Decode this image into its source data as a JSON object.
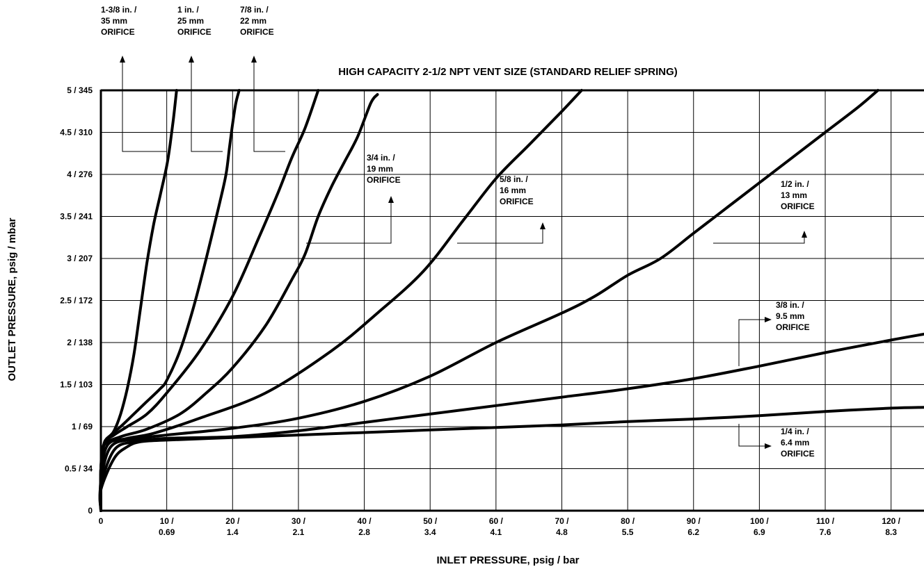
{
  "chart_data": {
    "type": "line",
    "title": "HIGH CAPACITY 2-1/2 NPT VENT SIZE (STANDARD RELIEF SPRING)",
    "xlabel": "INLET PRESSURE, psig / bar",
    "ylabel": "OUTLET PRESSURE, psig / mbar",
    "xlim": [
      0,
      125
    ],
    "ylim": [
      0,
      5
    ],
    "grid": true,
    "x_ticks": [
      {
        "value": 0,
        "line1": "0",
        "line2": ""
      },
      {
        "value": 10,
        "line1": "10 /",
        "line2": "0.69"
      },
      {
        "value": 20,
        "line1": "20 /",
        "line2": "1.4"
      },
      {
        "value": 30,
        "line1": "30 /",
        "line2": "2.1"
      },
      {
        "value": 40,
        "line1": "40 /",
        "line2": "2.8"
      },
      {
        "value": 50,
        "line1": "50 /",
        "line2": "3.4"
      },
      {
        "value": 60,
        "line1": "60 /",
        "line2": "4.1"
      },
      {
        "value": 70,
        "line1": "70 /",
        "line2": "4.8"
      },
      {
        "value": 80,
        "line1": "80 /",
        "line2": "5.5"
      },
      {
        "value": 90,
        "line1": "90 /",
        "line2": "6.2"
      },
      {
        "value": 100,
        "line1": "100 /",
        "line2": "6.9"
      },
      {
        "value": 110,
        "line1": "110 /",
        "line2": "7.6"
      },
      {
        "value": 120,
        "line1": "120 /",
        "line2": "8.3"
      }
    ],
    "y_ticks": [
      {
        "value": 0,
        "label": "0"
      },
      {
        "value": 0.5,
        "label": "0.5 / 34"
      },
      {
        "value": 1,
        "label": "1 / 69"
      },
      {
        "value": 1.5,
        "label": "1.5 / 103"
      },
      {
        "value": 2,
        "label": "2 / 138"
      },
      {
        "value": 2.5,
        "label": "2.5 / 172"
      },
      {
        "value": 3,
        "label": "3 / 207"
      },
      {
        "value": 3.5,
        "label": "3.5 / 241"
      },
      {
        "value": 4,
        "label": "4 / 276"
      },
      {
        "value": 4.5,
        "label": "4.5 / 310"
      },
      {
        "value": 5,
        "label": "5 / 345"
      }
    ],
    "series": [
      {
        "name": "1-3/8 in. / 35 mm ORIFICE",
        "points": [
          [
            0,
            0
          ],
          [
            0,
            0.5
          ],
          [
            0.5,
            0.8
          ],
          [
            1,
            0.85
          ],
          [
            2,
            0.95
          ],
          [
            3,
            1.15
          ],
          [
            4,
            1.45
          ],
          [
            5,
            1.85
          ],
          [
            6,
            2.4
          ],
          [
            7,
            2.95
          ],
          [
            8,
            3.4
          ],
          [
            9,
            3.75
          ],
          [
            10,
            4.1
          ],
          [
            10.5,
            4.35
          ],
          [
            11,
            4.65
          ],
          [
            11.5,
            5.0
          ]
        ]
      },
      {
        "name": "1 in. / 25 mm ORIFICE",
        "points": [
          [
            0,
            0
          ],
          [
            0,
            0.5
          ],
          [
            0.5,
            0.8
          ],
          [
            1.5,
            0.9
          ],
          [
            3,
            1.0
          ],
          [
            5,
            1.15
          ],
          [
            7,
            1.3
          ],
          [
            9,
            1.45
          ],
          [
            10,
            1.55
          ],
          [
            12,
            1.9
          ],
          [
            14,
            2.4
          ],
          [
            16,
            3.0
          ],
          [
            18,
            3.65
          ],
          [
            19,
            4.0
          ],
          [
            19.5,
            4.3
          ],
          [
            20,
            4.6
          ],
          [
            20.5,
            4.85
          ],
          [
            21,
            5.0
          ]
        ]
      },
      {
        "name": "7/8 in. / 22 mm ORIFICE",
        "points": [
          [
            0,
            0
          ],
          [
            0,
            0.5
          ],
          [
            0.5,
            0.8
          ],
          [
            2,
            0.9
          ],
          [
            4,
            1.0
          ],
          [
            7,
            1.15
          ],
          [
            10,
            1.4
          ],
          [
            15,
            1.9
          ],
          [
            20,
            2.55
          ],
          [
            24,
            3.25
          ],
          [
            27,
            3.8
          ],
          [
            29,
            4.2
          ],
          [
            31,
            4.55
          ],
          [
            33,
            5.0
          ]
        ]
      },
      {
        "name": "3/4 in. / 19 mm ORIFICE",
        "points": [
          [
            0,
            0
          ],
          [
            0,
            0.5
          ],
          [
            0.5,
            0.78
          ],
          [
            3,
            0.88
          ],
          [
            7,
            0.97
          ],
          [
            12,
            1.15
          ],
          [
            16,
            1.4
          ],
          [
            20,
            1.7
          ],
          [
            25,
            2.2
          ],
          [
            29,
            2.75
          ],
          [
            31,
            3.05
          ],
          [
            33,
            3.5
          ],
          [
            35,
            3.85
          ],
          [
            37,
            4.15
          ],
          [
            39,
            4.45
          ],
          [
            41,
            4.85
          ],
          [
            42,
            4.95
          ]
        ]
      },
      {
        "name": "5/8 in. / 16 mm ORIFICE",
        "points": [
          [
            0,
            0
          ],
          [
            0,
            0.4
          ],
          [
            1,
            0.78
          ],
          [
            4,
            0.86
          ],
          [
            8,
            0.92
          ],
          [
            15,
            1.1
          ],
          [
            25,
            1.4
          ],
          [
            35,
            1.9
          ],
          [
            42,
            2.35
          ],
          [
            49,
            2.85
          ],
          [
            55,
            3.45
          ],
          [
            60,
            3.95
          ],
          [
            65,
            4.35
          ],
          [
            70,
            4.75
          ],
          [
            73,
            5.0
          ]
        ]
      },
      {
        "name": "1/2 in. / 13 mm ORIFICE",
        "points": [
          [
            0,
            0
          ],
          [
            0,
            0.35
          ],
          [
            1.5,
            0.76
          ],
          [
            5,
            0.85
          ],
          [
            10,
            0.9
          ],
          [
            20,
            0.98
          ],
          [
            30,
            1.1
          ],
          [
            40,
            1.3
          ],
          [
            50,
            1.6
          ],
          [
            60,
            2.0
          ],
          [
            70,
            2.35
          ],
          [
            75,
            2.55
          ],
          [
            80,
            2.8
          ],
          [
            85,
            3.0
          ],
          [
            90,
            3.3
          ],
          [
            95,
            3.6
          ],
          [
            100,
            3.9
          ],
          [
            105,
            4.2
          ],
          [
            110,
            4.5
          ],
          [
            115,
            4.8
          ],
          [
            118,
            5.0
          ]
        ]
      },
      {
        "name": "3/8 in. / 9.5 mm ORIFICE",
        "points": [
          [
            0,
            0
          ],
          [
            0,
            0.3
          ],
          [
            2,
            0.72
          ],
          [
            5,
            0.82
          ],
          [
            10,
            0.86
          ],
          [
            20,
            0.88
          ],
          [
            30,
            0.95
          ],
          [
            40,
            1.05
          ],
          [
            50,
            1.15
          ],
          [
            60,
            1.25
          ],
          [
            70,
            1.35
          ],
          [
            80,
            1.45
          ],
          [
            90,
            1.57
          ],
          [
            100,
            1.72
          ],
          [
            110,
            1.88
          ],
          [
            120,
            2.03
          ],
          [
            125,
            2.1
          ]
        ]
      },
      {
        "name": "1/4 in. / 6.4 mm ORIFICE",
        "points": [
          [
            0,
            0
          ],
          [
            0,
            0.25
          ],
          [
            2,
            0.62
          ],
          [
            4,
            0.76
          ],
          [
            6,
            0.82
          ],
          [
            10,
            0.84
          ],
          [
            20,
            0.87
          ],
          [
            30,
            0.9
          ],
          [
            40,
            0.93
          ],
          [
            50,
            0.96
          ],
          [
            60,
            0.99
          ],
          [
            70,
            1.02
          ],
          [
            80,
            1.06
          ],
          [
            90,
            1.09
          ],
          [
            100,
            1.13
          ],
          [
            110,
            1.18
          ],
          [
            120,
            1.22
          ],
          [
            125,
            1.23
          ]
        ]
      }
    ],
    "annotations": [
      {
        "lines": [
          "1-3/8 in. /",
          "35 mm",
          "ORIFICE"
        ]
      },
      {
        "lines": [
          "1 in. /",
          "25 mm",
          "ORIFICE"
        ]
      },
      {
        "lines": [
          "7/8 in. /",
          "22 mm",
          "ORIFICE"
        ]
      },
      {
        "lines": [
          "3/4 in. /",
          "19 mm",
          "ORIFICE"
        ]
      },
      {
        "lines": [
          "5/8 in. /",
          "16 mm",
          "ORIFICE"
        ]
      },
      {
        "lines": [
          "1/2 in. /",
          "13 mm",
          "ORIFICE"
        ]
      },
      {
        "lines": [
          "3/8 in. /",
          "9.5 mm",
          "ORIFICE"
        ]
      },
      {
        "lines": [
          "1/4 in. /",
          "6.4 mm",
          "ORIFICE"
        ]
      }
    ]
  }
}
